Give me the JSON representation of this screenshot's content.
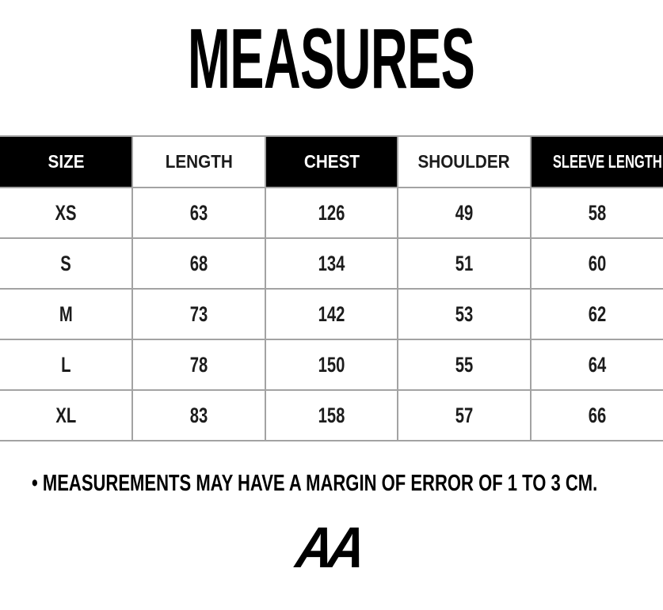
{
  "chart_data": {
    "type": "table",
    "title": "MEASURES",
    "columns": [
      "SIZE",
      "LENGTH",
      "CHEST",
      "SHOULDER",
      "SLEEVE LENGTH"
    ],
    "rows": [
      [
        "XS",
        63,
        126,
        49,
        58
      ],
      [
        "S",
        68,
        134,
        51,
        60
      ],
      [
        "M",
        73,
        142,
        53,
        62
      ],
      [
        "L",
        78,
        150,
        55,
        64
      ],
      [
        "XL",
        83,
        158,
        57,
        66
      ]
    ],
    "footnote": "• MEASUREMENTS MAY HAVE A MARGIN OF ERROR OF 1 TO 3 CM."
  },
  "logo": {
    "text": "AA"
  },
  "colors": {
    "background": "#ffffff",
    "header_bg": "#000000",
    "header_text": "#ffffff",
    "body_text": "#1c1c1c",
    "grid_line": "#a3a3a3"
  }
}
